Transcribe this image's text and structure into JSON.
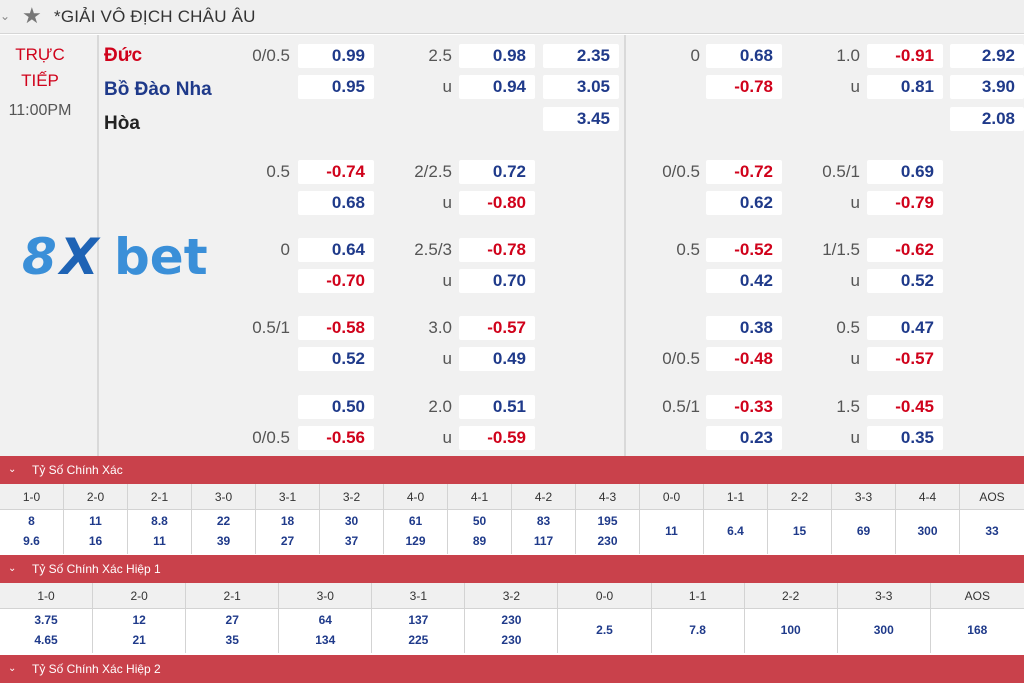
{
  "header": {
    "league": "*GIẢI VÔ ĐỊCH CHÂU ÂU"
  },
  "match": {
    "live_line1": "TRỰC",
    "live_line2": "TIẾP",
    "time": "11:00PM",
    "home": "Đức",
    "away": "Bồ Đào Nha",
    "draw": "Hòa"
  },
  "odds": {
    "r1": {
      "a": "0/0.5",
      "b": "0.99",
      "c": "2.5",
      "d": "0.98",
      "e": "2.35",
      "f": "0",
      "g": "0.68",
      "h": "1.0",
      "i": "-0.91",
      "j": "2.92"
    },
    "r2": {
      "b": "0.95",
      "c": "u",
      "d": "0.94",
      "e": "3.05",
      "g": "-0.78",
      "h": "u",
      "i": "0.81",
      "j": "3.90"
    },
    "r3": {
      "e": "3.45",
      "j": "2.08"
    },
    "r4": {
      "a": "0.5",
      "b": "-0.74",
      "c": "2/2.5",
      "d": "0.72",
      "f": "0/0.5",
      "g": "-0.72",
      "h": "0.5/1",
      "i": "0.69"
    },
    "r5": {
      "b": "0.68",
      "c": "u",
      "d": "-0.80",
      "g": "0.62",
      "h": "u",
      "i": "-0.79"
    },
    "r6": {
      "a": "0",
      "b": "0.64",
      "c": "2.5/3",
      "d": "-0.78",
      "f": "0.5",
      "g": "-0.52",
      "h": "1/1.5",
      "i": "-0.62"
    },
    "r7": {
      "b": "-0.70",
      "c": "u",
      "d": "0.70",
      "g": "0.42",
      "h": "u",
      "i": "0.52"
    },
    "r8": {
      "a": "0.5/1",
      "b": "-0.58",
      "c": "3.0",
      "d": "-0.57",
      "g": "0.38",
      "h": "0.5",
      "i": "0.47"
    },
    "r9": {
      "b": "0.52",
      "c": "u",
      "d": "0.49",
      "f": "0/0.5",
      "g": "-0.48",
      "h": "u",
      "i": "-0.57"
    },
    "r10": {
      "b": "0.50",
      "c": "2.0",
      "d": "0.51",
      "f": "0.5/1",
      "g": "-0.33",
      "h": "1.5",
      "i": "-0.45"
    },
    "r11": {
      "a": "0/0.5",
      "b": "-0.56",
      "c": "u",
      "d": "-0.59",
      "g": "0.23",
      "h": "u",
      "i": "0.35"
    }
  },
  "logo": {
    "p1": "8",
    "p2": "X",
    "p3": "bet"
  },
  "correct_score": {
    "title": "Tỷ Số Chính Xác",
    "cols": [
      {
        "h": "1-0",
        "a": "8",
        "b": "9.6"
      },
      {
        "h": "2-0",
        "a": "11",
        "b": "16"
      },
      {
        "h": "2-1",
        "a": "8.8",
        "b": "11"
      },
      {
        "h": "3-0",
        "a": "22",
        "b": "39"
      },
      {
        "h": "3-1",
        "a": "18",
        "b": "27"
      },
      {
        "h": "3-2",
        "a": "30",
        "b": "37"
      },
      {
        "h": "4-0",
        "a": "61",
        "b": "129"
      },
      {
        "h": "4-1",
        "a": "50",
        "b": "89"
      },
      {
        "h": "4-2",
        "a": "83",
        "b": "117"
      },
      {
        "h": "4-3",
        "a": "195",
        "b": "230"
      },
      {
        "h": "0-0",
        "c": "11"
      },
      {
        "h": "1-1",
        "c": "6.4"
      },
      {
        "h": "2-2",
        "c": "15"
      },
      {
        "h": "3-3",
        "c": "69"
      },
      {
        "h": "4-4",
        "c": "300"
      },
      {
        "h": "AOS",
        "c": "33"
      }
    ]
  },
  "correct_score_h1": {
    "title": "Tỷ Số Chính Xác Hiệp 1",
    "cols": [
      {
        "h": "1-0",
        "a": "3.75",
        "b": "4.65"
      },
      {
        "h": "2-0",
        "a": "12",
        "b": "21"
      },
      {
        "h": "2-1",
        "a": "27",
        "b": "35"
      },
      {
        "h": "3-0",
        "a": "64",
        "b": "134"
      },
      {
        "h": "3-1",
        "a": "137",
        "b": "225"
      },
      {
        "h": "3-2",
        "a": "230",
        "b": "230"
      },
      {
        "h": "0-0",
        "c": "2.5"
      },
      {
        "h": "1-1",
        "c": "7.8"
      },
      {
        "h": "2-2",
        "c": "100"
      },
      {
        "h": "3-3",
        "c": "300"
      },
      {
        "h": "AOS",
        "c": "168"
      }
    ]
  },
  "correct_score_h2": {
    "title": "Tỷ Số Chính Xác Hiệp 2"
  },
  "icons": {
    "collapse": "chevron-down-icon",
    "favorite": "star-icon"
  }
}
